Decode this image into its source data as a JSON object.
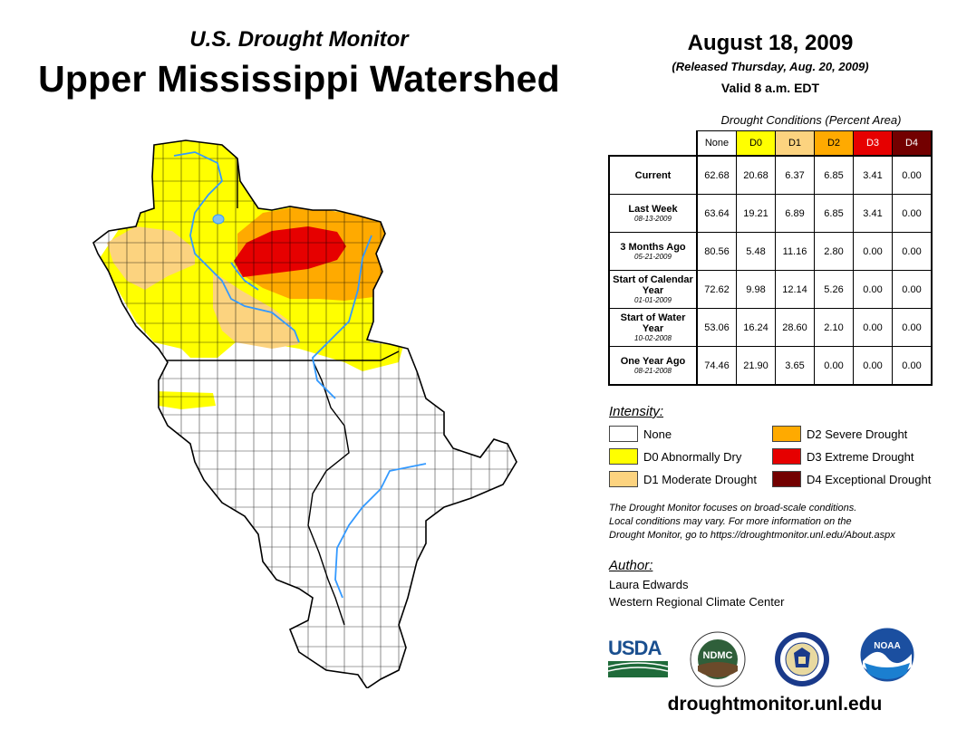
{
  "header": {
    "subtitle": "U.S. Drought Monitor",
    "title": "Upper Mississippi Watershed",
    "date": "August 18, 2009",
    "released": "(Released Thursday, Aug. 20, 2009)",
    "valid": "Valid 8 a.m. EDT"
  },
  "table": {
    "caption": "Drought Conditions (Percent Area)",
    "columns": [
      {
        "label": "None",
        "color": "#ffffff"
      },
      {
        "label": "D0",
        "color": "#ffff00"
      },
      {
        "label": "D1",
        "color": "#fcd37f"
      },
      {
        "label": "D2",
        "color": "#ffaa00"
      },
      {
        "label": "D3",
        "color": "#e60000"
      },
      {
        "label": "D4",
        "color": "#730000"
      }
    ],
    "rows": [
      {
        "label": "Current",
        "date": "",
        "values": [
          "62.68",
          "20.68",
          "6.37",
          "6.85",
          "3.41",
          "0.00"
        ]
      },
      {
        "label": "Last Week",
        "date": "08-13-2009",
        "values": [
          "63.64",
          "19.21",
          "6.89",
          "6.85",
          "3.41",
          "0.00"
        ]
      },
      {
        "label": "3 Months Ago",
        "date": "05-21-2009",
        "values": [
          "80.56",
          "5.48",
          "11.16",
          "2.80",
          "0.00",
          "0.00"
        ]
      },
      {
        "label": "Start of Calendar Year",
        "date": "01-01-2009",
        "values": [
          "72.62",
          "9.98",
          "12.14",
          "5.26",
          "0.00",
          "0.00"
        ]
      },
      {
        "label": "Start of Water Year",
        "date": "10-02-2008",
        "values": [
          "53.06",
          "16.24",
          "28.60",
          "2.10",
          "0.00",
          "0.00"
        ]
      },
      {
        "label": "One Year Ago",
        "date": "08-21-2008",
        "values": [
          "74.46",
          "21.90",
          "3.65",
          "0.00",
          "0.00",
          "0.00"
        ]
      }
    ]
  },
  "legend": {
    "heading": "Intensity:",
    "items": [
      {
        "label": "None",
        "color": "#ffffff"
      },
      {
        "label": "D0 Abnormally Dry",
        "color": "#ffff00"
      },
      {
        "label": "D1 Moderate Drought",
        "color": "#fcd37f"
      },
      {
        "label": "D2 Severe Drought",
        "color": "#ffaa00"
      },
      {
        "label": "D3 Extreme Drought",
        "color": "#e60000"
      },
      {
        "label": "D4 Exceptional Drought",
        "color": "#730000"
      }
    ]
  },
  "note": {
    "line1": "The Drought Monitor focuses on broad-scale conditions.",
    "line2": "Local conditions may vary. For more information on the",
    "line3": "Drought Monitor, go to https://droughtmonitor.unl.edu/About.aspx"
  },
  "author": {
    "heading": "Author:",
    "name": "Laura Edwards",
    "org": "Western Regional Climate Center"
  },
  "logos": {
    "usda": "USDA",
    "ndmc": "NDMC",
    "noaa": "NOAA"
  },
  "footer": {
    "url": "droughtmonitor.unl.edu"
  },
  "colors": {
    "river": "#3399ff",
    "county_line": "#000000"
  }
}
